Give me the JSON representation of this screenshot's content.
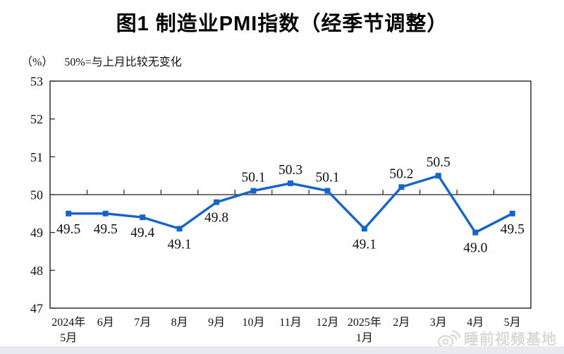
{
  "title": "图1  制造业PMI指数（经季节调整）",
  "subtitle": {
    "unit": "（%）",
    "note": "50%=与上月比较无变化"
  },
  "watermark": {
    "icon": "weibo-icon",
    "text": "睡前视频基地"
  },
  "chart_data": {
    "type": "line",
    "title": "图1  制造业PMI指数（经季节调整）",
    "xlabel": "",
    "ylabel": "（%）",
    "categories": [
      "2024年\n5月",
      "6月",
      "7月",
      "8月",
      "9月",
      "10月",
      "11月",
      "12月",
      "2025年\n1月",
      "2月",
      "3月",
      "4月",
      "5月"
    ],
    "values": [
      49.5,
      49.5,
      49.4,
      49.1,
      49.8,
      50.1,
      50.3,
      50.1,
      49.1,
      50.2,
      50.5,
      49.0,
      49.5
    ],
    "ylim": [
      47,
      53
    ],
    "yticks": [
      47,
      48,
      49,
      50,
      51,
      52,
      53
    ],
    "reference_line": 50,
    "reference_line_note": "50%=与上月比较无变化",
    "series_color": "#1664C8",
    "marker": "square",
    "grid": false,
    "legend": "none"
  }
}
